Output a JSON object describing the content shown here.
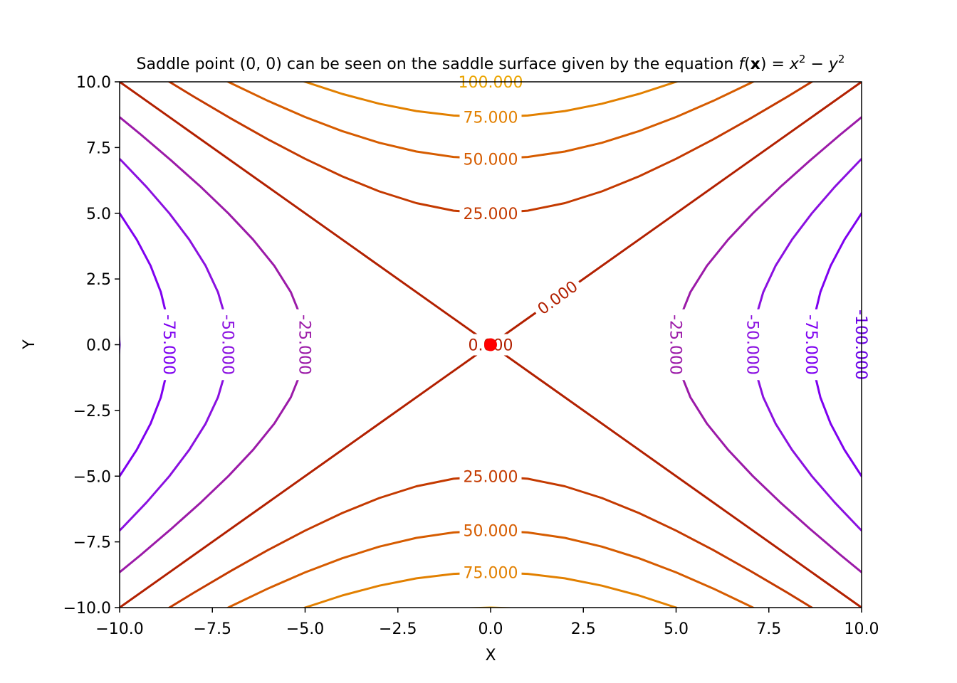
{
  "chart_data": {
    "type": "contour",
    "title_parts": {
      "prefix": "Saddle point ",
      "point": "(0, 0)",
      "middle": " can be seen on the saddle surface given by the equation ",
      "f": "f",
      "bold_x": "x",
      "eq": " = x",
      "sup1": "2",
      "minus": " − y",
      "sup2": "2"
    },
    "xlabel": "X",
    "ylabel": "Y",
    "xlim": [
      -10,
      10
    ],
    "ylim": [
      -10,
      10
    ],
    "x_ticks": [
      -10,
      -7.5,
      -5,
      -2.5,
      0,
      2.5,
      5,
      7.5,
      10
    ],
    "x_tick_labels": [
      "−10.0",
      "−7.5",
      "−5.0",
      "−2.5",
      "0.0",
      "2.5",
      "5.0",
      "7.5",
      "10.0"
    ],
    "y_ticks": [
      10,
      7.5,
      5,
      2.5,
      0,
      -2.5,
      -5,
      -7.5,
      -10
    ],
    "y_tick_labels": [
      "10.0",
      "7.5",
      "5.0",
      "2.5",
      "0.0",
      "−2.5",
      "−5.0",
      "−7.5",
      "−10.0"
    ],
    "function": "x^2 - y^2",
    "levels": [
      -100,
      -75,
      -50,
      -25,
      0,
      25,
      50,
      75,
      100
    ],
    "level_colors": {
      "-100": "#6a00e6",
      "-75": "#7e00f0",
      "-50": "#8a10e0",
      "-25": "#9b1aa8",
      "0": "#b22000",
      "25": "#c43a00",
      "50": "#d65c00",
      "75": "#e28000",
      "100": "#eba400"
    },
    "contour_labels": [
      {
        "text": "100.000",
        "level": 100,
        "x": 0,
        "y": 10.0,
        "rot": 0
      },
      {
        "text": "75.000",
        "level": 75,
        "x": 0,
        "y": 8.66,
        "rot": 0
      },
      {
        "text": "50.000",
        "level": 50,
        "x": 0,
        "y": 7.07,
        "rot": 0
      },
      {
        "text": "25.000",
        "level": 25,
        "x": 0,
        "y": 5.0,
        "rot": 0
      },
      {
        "text": "0.000",
        "level": 0,
        "x": 0,
        "y": 0,
        "rot": 0
      },
      {
        "text": "0.000",
        "level": 0,
        "x": 1.8,
        "y": 1.8,
        "rot": -36
      },
      {
        "text": "25.000",
        "level": 25,
        "x": 0,
        "y": -5.0,
        "rot": 0
      },
      {
        "text": "50.000",
        "level": 50,
        "x": 0,
        "y": -7.07,
        "rot": 0
      },
      {
        "text": "75.000",
        "level": 75,
        "x": 0,
        "y": -8.66,
        "rot": 0
      },
      {
        "text": "-75.000",
        "level": -75,
        "x": -8.66,
        "y": 0,
        "rot": 90
      },
      {
        "text": "-50.000",
        "level": -50,
        "x": -7.07,
        "y": 0,
        "rot": 90
      },
      {
        "text": "-25.000",
        "level": -25,
        "x": -5.0,
        "y": 0,
        "rot": 90
      },
      {
        "text": "-25.000",
        "level": -25,
        "x": 5.0,
        "y": 0,
        "rot": 90
      },
      {
        "text": "-50.000",
        "level": -50,
        "x": 7.07,
        "y": 0,
        "rot": 90
      },
      {
        "text": "-75.000",
        "level": -75,
        "x": 8.66,
        "y": 0,
        "rot": 90
      },
      {
        "text": "-100.000",
        "level": -100,
        "x": 10.0,
        "y": 0,
        "rot": 90
      }
    ],
    "points": [
      {
        "x": 0,
        "y": 0,
        "color": "#ff0000"
      }
    ]
  }
}
